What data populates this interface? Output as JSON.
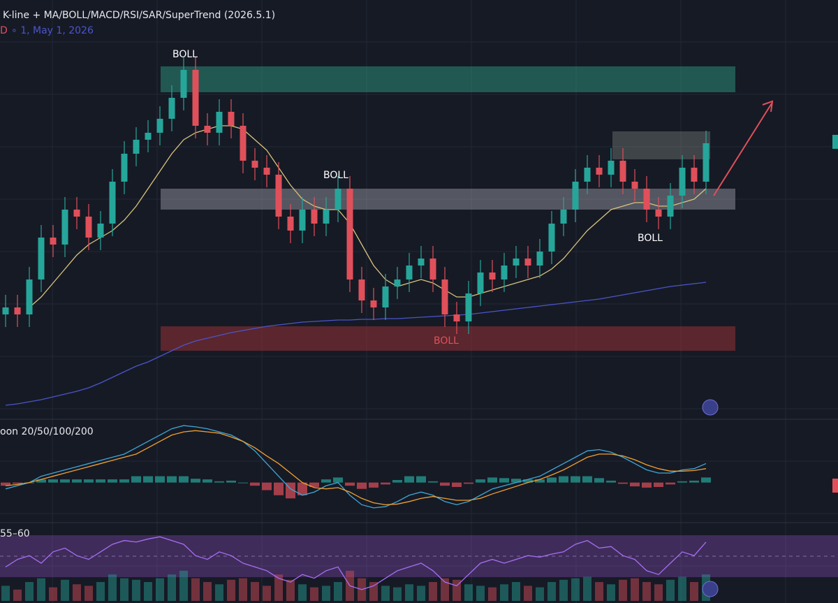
{
  "title": "K-line + MA/BOLL/MACD/RSI/SAR/SuperTrend (2026.5.1)",
  "subtitle_prefix": "D",
  "subtitle": "∘ 1, May 1, 2026",
  "chart_data": [
    {
      "type": "candlestick",
      "categories": [
        null,
        null,
        null,
        null,
        null,
        null,
        null,
        null,
        null,
        null,
        null,
        null,
        null,
        null,
        null,
        null,
        null,
        null,
        null,
        null,
        null,
        null,
        null,
        null,
        null,
        null,
        null,
        null,
        null,
        null,
        null,
        null,
        null,
        null,
        null,
        null,
        null,
        null,
        null,
        null,
        null,
        null,
        null,
        null,
        null,
        null,
        null,
        null,
        null,
        null,
        null,
        null,
        null,
        null,
        null,
        null,
        null,
        null,
        null,
        null
      ],
      "open": [
        150,
        160,
        150,
        200,
        260,
        250,
        300,
        290,
        260,
        280,
        340,
        380,
        400,
        410,
        430,
        460,
        500,
        420,
        410,
        440,
        420,
        370,
        360,
        350,
        290,
        270,
        300,
        280,
        300,
        330,
        200,
        170,
        160,
        190,
        200,
        220,
        230,
        200,
        150,
        140,
        180,
        210,
        200,
        220,
        230,
        220,
        240,
        280,
        300,
        340,
        360,
        350,
        370,
        340,
        330,
        300,
        290,
        320,
        360,
        340
      ],
      "high": [
        178,
        178,
        218,
        278,
        278,
        318,
        318,
        308,
        298,
        358,
        398,
        418,
        428,
        448,
        478,
        518,
        518,
        438,
        458,
        458,
        438,
        388,
        378,
        368,
        308,
        318,
        318,
        318,
        348,
        348,
        218,
        188,
        208,
        218,
        238,
        248,
        248,
        218,
        168,
        198,
        228,
        228,
        238,
        248,
        248,
        258,
        298,
        318,
        358,
        378,
        378,
        388,
        388,
        358,
        348,
        318,
        338,
        378,
        378,
        413
      ],
      "low": [
        132,
        132,
        132,
        182,
        232,
        232,
        272,
        242,
        242,
        262,
        322,
        362,
        382,
        392,
        412,
        442,
        402,
        392,
        392,
        402,
        352,
        342,
        332,
        272,
        252,
        252,
        262,
        262,
        282,
        182,
        152,
        142,
        142,
        172,
        182,
        202,
        182,
        132,
        122,
        122,
        162,
        182,
        182,
        202,
        202,
        202,
        222,
        262,
        282,
        322,
        332,
        332,
        322,
        312,
        282,
        272,
        272,
        302,
        322,
        322
      ],
      "close": [
        160,
        150,
        200,
        260,
        250,
        300,
        290,
        260,
        280,
        340,
        380,
        400,
        410,
        430,
        460,
        500,
        420,
        410,
        440,
        420,
        370,
        360,
        350,
        290,
        270,
        300,
        280,
        300,
        330,
        200,
        170,
        160,
        190,
        200,
        220,
        230,
        200,
        150,
        140,
        180,
        210,
        200,
        220,
        230,
        220,
        240,
        280,
        300,
        340,
        360,
        350,
        370,
        340,
        330,
        300,
        290,
        320,
        360,
        340,
        395
      ],
      "up_color": "#26a69a",
      "down_color": "#e0505a",
      "lines": [
        {
          "color": "#d9c47c",
          "values": [
            null,
            null,
            160,
            175,
            195,
            215,
            235,
            250,
            260,
            270,
            285,
            305,
            330,
            355,
            380,
            400,
            410,
            415,
            420,
            420,
            415,
            400,
            385,
            360,
            335,
            315,
            305,
            300,
            300,
            280,
            250,
            220,
            200,
            190,
            195,
            200,
            195,
            185,
            175,
            175,
            180,
            185,
            190,
            195,
            200,
            205,
            215,
            230,
            250,
            270,
            285,
            300,
            305,
            310,
            310,
            305,
            305,
            310,
            315,
            330
          ]
        },
        {
          "color": "#4b55c9",
          "values": [
            20,
            22,
            25,
            28,
            32,
            36,
            40,
            45,
            52,
            60,
            68,
            76,
            82,
            90,
            98,
            106,
            112,
            116,
            120,
            124,
            127,
            130,
            133,
            135,
            137,
            139,
            140,
            141,
            142,
            142,
            143,
            143,
            144,
            144,
            145,
            146,
            147,
            148,
            149,
            150,
            152,
            154,
            156,
            158,
            160,
            162,
            164,
            166,
            168,
            170,
            172,
            175,
            178,
            181,
            184,
            187,
            190,
            192,
            194,
            196
          ]
        }
      ],
      "zones": [
        {
          "color": "rgba(45,140,120,0.55)",
          "range": [
            505,
            468
          ]
        },
        {
          "color": "rgba(200,200,210,0.35)",
          "range": [
            330,
            300
          ]
        },
        {
          "color": "rgba(150,50,55,0.55)",
          "range": [
            133,
            98
          ]
        },
        {
          "color": "rgba(140,150,140,0.35)",
          "range": [
            412,
            372
          ]
        }
      ],
      "annotations": [
        {
          "text": "BOLL",
          "color": "#ffffff"
        },
        {
          "text": "BOLL",
          "color": "#ffffff"
        },
        {
          "text": "BOLL",
          "color": "#ffffff"
        },
        {
          "text": "BOLL",
          "color": "#e0505a"
        }
      ],
      "ylim": [
        0,
        600
      ]
    },
    {
      "type": "macd",
      "label": "oon 20/50/100/200",
      "lines": [
        {
          "color": "#3fa7d6",
          "values": [
            -10,
            -5,
            0,
            10,
            15,
            20,
            25,
            30,
            35,
            40,
            45,
            55,
            65,
            75,
            85,
            90,
            88,
            85,
            80,
            75,
            65,
            50,
            30,
            10,
            -10,
            -20,
            -15,
            -5,
            0,
            -20,
            -35,
            -40,
            -38,
            -30,
            -20,
            -15,
            -20,
            -30,
            -35,
            -30,
            -20,
            -10,
            -5,
            0,
            5,
            10,
            20,
            30,
            40,
            50,
            52,
            48,
            40,
            30,
            20,
            15,
            15,
            20,
            22,
            30
          ]
        },
        {
          "color": "#f0a030",
          "values": [
            -5,
            -3,
            0,
            5,
            10,
            15,
            20,
            25,
            30,
            35,
            40,
            45,
            55,
            65,
            75,
            80,
            82,
            80,
            78,
            72,
            65,
            55,
            42,
            30,
            15,
            0,
            -8,
            -10,
            -8,
            -15,
            -25,
            -32,
            -35,
            -34,
            -30,
            -25,
            -22,
            -25,
            -28,
            -28,
            -25,
            -18,
            -12,
            -6,
            0,
            5,
            12,
            20,
            30,
            40,
            45,
            45,
            42,
            36,
            28,
            22,
            18,
            18,
            19,
            22
          ]
        }
      ],
      "histogram": [
        -5,
        -2,
        0,
        5,
        5,
        5,
        5,
        5,
        5,
        5,
        5,
        10,
        10,
        10,
        10,
        10,
        6,
        5,
        2,
        3,
        0,
        -5,
        -12,
        -20,
        -25,
        -20,
        -7,
        5,
        8,
        -5,
        -10,
        -8,
        -3,
        4,
        10,
        10,
        2,
        -5,
        -7,
        -2,
        5,
        8,
        7,
        6,
        5,
        5,
        8,
        10,
        10,
        10,
        7,
        3,
        -2,
        -6,
        -8,
        -7,
        -3,
        2,
        3,
        8
      ],
      "up_color": "#26a69a",
      "down_color": "#e0505a",
      "ylim": [
        -60,
        100
      ]
    },
    {
      "type": "rsi",
      "label": "55–60",
      "color": "#a76ef2",
      "values": [
        45,
        55,
        60,
        50,
        65,
        70,
        60,
        55,
        65,
        75,
        80,
        78,
        82,
        85,
        80,
        75,
        60,
        55,
        65,
        60,
        50,
        45,
        40,
        30,
        25,
        35,
        30,
        40,
        45,
        20,
        15,
        20,
        30,
        40,
        45,
        50,
        40,
        25,
        20,
        35,
        50,
        55,
        50,
        55,
        60,
        58,
        62,
        65,
        75,
        80,
        70,
        72,
        60,
        55,
        40,
        35,
        50,
        65,
        60,
        78
      ],
      "volume": [
        20,
        15,
        25,
        30,
        18,
        28,
        22,
        20,
        25,
        35,
        30,
        28,
        25,
        30,
        35,
        40,
        30,
        25,
        22,
        28,
        30,
        25,
        20,
        35,
        28,
        22,
        18,
        20,
        25,
        40,
        30,
        25,
        20,
        18,
        22,
        20,
        25,
        30,
        28,
        22,
        20,
        18,
        22,
        25,
        20,
        18,
        25,
        28,
        30,
        32,
        25,
        22,
        28,
        30,
        25,
        22,
        28,
        32,
        25,
        35
      ],
      "ylim": [
        0,
        100
      ]
    }
  ]
}
